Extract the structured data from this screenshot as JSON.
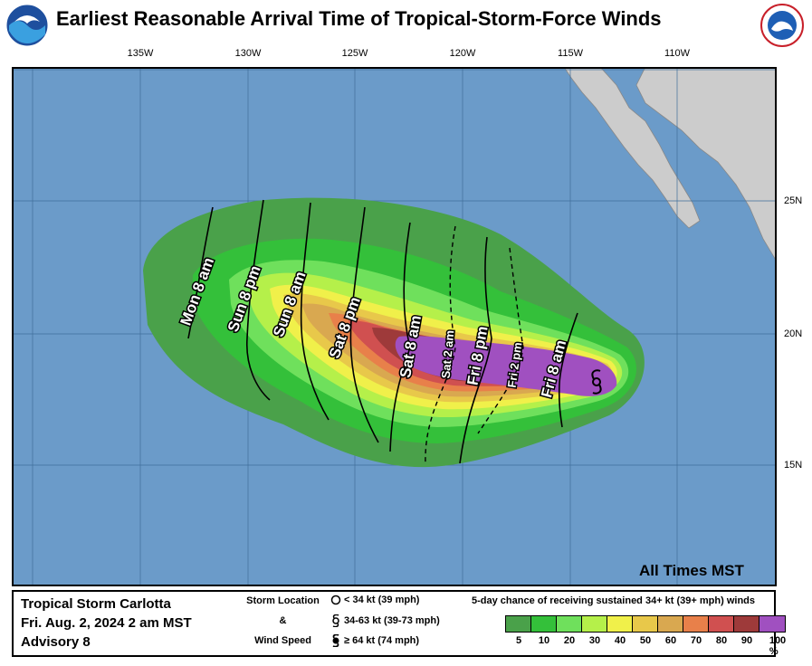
{
  "title": "Earliest Reasonable Arrival Time of Tropical-Storm-Force Winds",
  "logos": {
    "left": "noaa-logo",
    "right": "nws-logo"
  },
  "longitude_labels": [
    "135W",
    "130W",
    "125W",
    "120W",
    "115W",
    "110W"
  ],
  "latitude_labels": [
    "25N",
    "20N",
    "15N"
  ],
  "arrival_labels": [
    "Mon 8 am",
    "Sun 8 pm",
    "Sun 8 am",
    "Sat 8 pm",
    "Sat 8 am",
    "Sat 2 am",
    "Fri 8 pm",
    "Fri 2 pm",
    "Fri 8 am"
  ],
  "times_note": "All Times MST",
  "storm": {
    "name": "Tropical Storm Carlotta",
    "datetime": "Fri. Aug. 2, 2024  2 am MST",
    "advisory": "Advisory 8"
  },
  "location_key": {
    "line1": "Storm Location",
    "line2": "&",
    "line3": "Wind Speed",
    "symbols": [
      "< 34 kt (39 mph)",
      "34-63 kt (39-73 mph)",
      "≥ 64 kt (74 mph)"
    ]
  },
  "legend": {
    "title": "5-day chance of receiving sustained 34+ kt (39+ mph) winds",
    "labels": [
      "5",
      "10",
      "20",
      "30",
      "40",
      "50",
      "60",
      "70",
      "80",
      "90",
      "100 %"
    ],
    "colors": [
      "#4aa14a",
      "#34c03a",
      "#6fe05c",
      "#b5f04a",
      "#f0f04a",
      "#e8c84a",
      "#d9a850",
      "#e8804a",
      "#d05050",
      "#9e3a3a",
      "#a050c0"
    ]
  },
  "colors": {
    "ocean": "#6b9bc9",
    "land": "#cccccc",
    "storm_symbol": "#000000"
  }
}
